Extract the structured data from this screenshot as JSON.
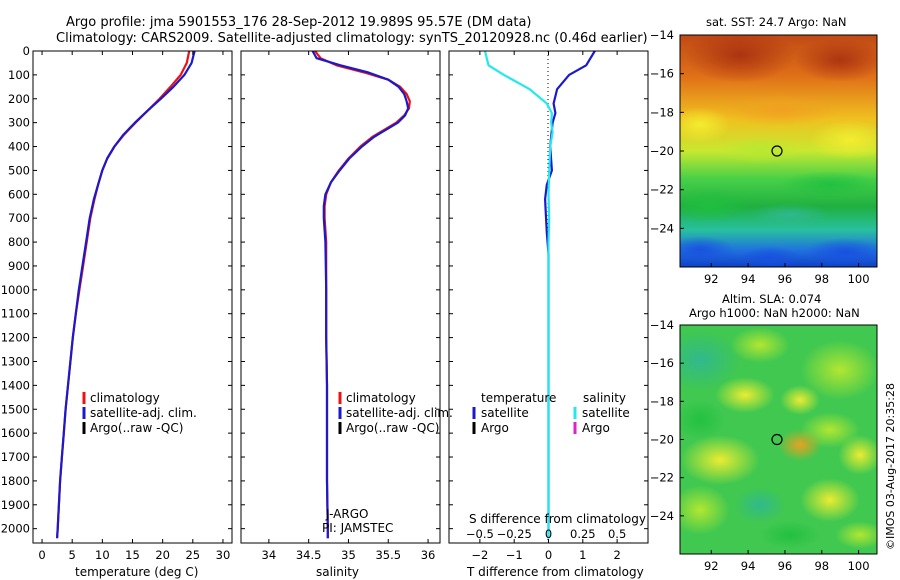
{
  "header": {
    "title_line1": "Argo profile: jma 5901553_176 28-Sep-2012 19.989S 95.57E (DM data)",
    "title_line2": "Climatology: CARS2009. Satellite-adjusted climatology: synTS_20120928.nc (0.46d earlier)"
  },
  "colors": {
    "climatology": "#ee1111",
    "satellite": "#1a1acc",
    "argo": "#000000",
    "salinity_satellite": "#22e8f0",
    "salinity_argo": "#dd22cc"
  },
  "chart_data": [
    {
      "type": "line",
      "title": "",
      "xlabel": "temperature (deg C)",
      "ylabel": "",
      "xlim": [
        -1.5,
        31.5
      ],
      "ylim": [
        2060,
        0
      ],
      "xticks": [
        0,
        5,
        10,
        15,
        20,
        25,
        30
      ],
      "yticks": [
        0,
        100,
        200,
        300,
        400,
        500,
        600,
        700,
        800,
        900,
        1000,
        1100,
        1200,
        1300,
        1400,
        1500,
        1600,
        1700,
        1800,
        1900,
        2000
      ],
      "legend": [
        "climatology",
        "satellite-adj. clim.",
        "Argo(..raw -QC)"
      ],
      "series": [
        {
          "name": "climatology",
          "color": "#ee1111",
          "points": [
            [
              24.4,
              0
            ],
            [
              24.0,
              50
            ],
            [
              23.0,
              100
            ],
            [
              21.3,
              150
            ],
            [
              19.5,
              200
            ],
            [
              17.5,
              250
            ],
            [
              15.5,
              300
            ],
            [
              13.6,
              350
            ],
            [
              12.0,
              400
            ],
            [
              10.8,
              450
            ],
            [
              10.0,
              500
            ],
            [
              9.3,
              560
            ],
            [
              8.7,
              620
            ],
            [
              8.0,
              700
            ],
            [
              7.4,
              800
            ],
            [
              6.8,
              900
            ],
            [
              6.2,
              1000
            ],
            [
              5.6,
              1100
            ],
            [
              5.1,
              1200
            ],
            [
              4.7,
              1300
            ],
            [
              4.3,
              1400
            ],
            [
              3.9,
              1500
            ],
            [
              3.6,
              1600
            ],
            [
              3.3,
              1700
            ],
            [
              3.0,
              1800
            ],
            [
              2.8,
              1900
            ],
            [
              2.6,
              2000
            ],
            [
              2.5,
              2040
            ]
          ]
        },
        {
          "name": "satellite-adj. clim.",
          "color": "#1a1acc",
          "points": [
            [
              25.3,
              0
            ],
            [
              24.8,
              50
            ],
            [
              23.6,
              100
            ],
            [
              21.8,
              150
            ],
            [
              19.7,
              200
            ],
            [
              17.5,
              250
            ],
            [
              15.4,
              300
            ],
            [
              13.5,
              350
            ],
            [
              12.0,
              400
            ],
            [
              10.8,
              450
            ],
            [
              10.0,
              500
            ],
            [
              9.3,
              560
            ],
            [
              8.6,
              620
            ],
            [
              7.9,
              700
            ],
            [
              7.3,
              800
            ],
            [
              6.7,
              900
            ],
            [
              6.1,
              1000
            ],
            [
              5.6,
              1100
            ],
            [
              5.1,
              1200
            ],
            [
              4.7,
              1300
            ],
            [
              4.3,
              1400
            ],
            [
              3.9,
              1500
            ],
            [
              3.6,
              1600
            ],
            [
              3.3,
              1700
            ],
            [
              3.0,
              1800
            ],
            [
              2.8,
              1900
            ],
            [
              2.6,
              2000
            ],
            [
              2.5,
              2040
            ]
          ]
        }
      ]
    },
    {
      "type": "line",
      "title": "",
      "xlabel": "salinity",
      "ylabel": "",
      "xlim": [
        33.65,
        36.15
      ],
      "ylim": [
        2060,
        0
      ],
      "xticks": [
        34,
        34.5,
        35,
        35.5,
        36
      ],
      "yticks": [
        0,
        100,
        200,
        300,
        400,
        500,
        600,
        700,
        800,
        900,
        1000,
        1100,
        1200,
        1300,
        1400,
        1500,
        1600,
        1700,
        1800,
        1900,
        2000
      ],
      "legend": [
        "climatology",
        "satellite-adj. clim.",
        "Argo(..raw -QC)"
      ],
      "annotations": [
        "J-ARGO",
        "PI: JAMSTEC"
      ],
      "series": [
        {
          "name": "climatology",
          "color": "#ee1111",
          "points": [
            [
              34.58,
              0
            ],
            [
              34.65,
              30
            ],
            [
              34.85,
              60
            ],
            [
              35.2,
              90
            ],
            [
              35.5,
              120
            ],
            [
              35.65,
              150
            ],
            [
              35.73,
              180
            ],
            [
              35.77,
              210
            ],
            [
              35.76,
              240
            ],
            [
              35.7,
              270
            ],
            [
              35.6,
              300
            ],
            [
              35.45,
              330
            ],
            [
              35.3,
              360
            ],
            [
              35.15,
              400
            ],
            [
              35.0,
              450
            ],
            [
              34.88,
              500
            ],
            [
              34.78,
              550
            ],
            [
              34.72,
              600
            ],
            [
              34.7,
              650
            ],
            [
              34.7,
              700
            ],
            [
              34.71,
              750
            ],
            [
              34.72,
              800
            ],
            [
              34.72,
              1000
            ],
            [
              34.72,
              1200
            ],
            [
              34.73,
              1400
            ],
            [
              34.73,
              1600
            ],
            [
              34.73,
              1800
            ],
            [
              34.74,
              2000
            ],
            [
              34.74,
              2040
            ]
          ]
        },
        {
          "name": "satellite-adj. clim.",
          "color": "#1a1acc",
          "points": [
            [
              34.55,
              0
            ],
            [
              34.6,
              30
            ],
            [
              34.9,
              60
            ],
            [
              35.25,
              90
            ],
            [
              35.5,
              120
            ],
            [
              35.63,
              150
            ],
            [
              35.7,
              180
            ],
            [
              35.73,
              210
            ],
            [
              35.75,
              240
            ],
            [
              35.71,
              270
            ],
            [
              35.62,
              300
            ],
            [
              35.47,
              330
            ],
            [
              35.32,
              360
            ],
            [
              35.17,
              400
            ],
            [
              35.01,
              450
            ],
            [
              34.89,
              500
            ],
            [
              34.78,
              550
            ],
            [
              34.71,
              600
            ],
            [
              34.69,
              650
            ],
            [
              34.69,
              700
            ],
            [
              34.7,
              750
            ],
            [
              34.71,
              800
            ],
            [
              34.72,
              1000
            ],
            [
              34.72,
              1200
            ],
            [
              34.73,
              1400
            ],
            [
              34.73,
              1600
            ],
            [
              34.73,
              1800
            ],
            [
              34.74,
              2000
            ],
            [
              34.74,
              2040
            ]
          ]
        }
      ]
    },
    {
      "type": "line",
      "title": "",
      "xlabel": "T difference from climatology",
      "xlabel2": "S difference from climatology",
      "ylabel": "",
      "xlim": [
        -2.9,
        2.9
      ],
      "ylim": [
        2060,
        0
      ],
      "xticks": [
        -2,
        -1,
        0,
        1,
        2
      ],
      "xticks2": [
        -0.5,
        -0.25,
        0,
        0.25,
        0.5
      ],
      "xticks2_labels": [
        "−0.5",
        "−0.25",
        "0",
        "0.25",
        "0.5"
      ],
      "xticks_labels": [
        "−2",
        "−1",
        "0",
        "1",
        "2"
      ],
      "yticks": [
        0,
        100,
        200,
        300,
        400,
        500,
        600,
        700,
        800,
        900,
        1000,
        1100,
        1200,
        1300,
        1400,
        1500,
        1600,
        1700,
        1800,
        1900,
        2000
      ],
      "legend_temperature": [
        "temperature",
        "satellite",
        "Argo"
      ],
      "legend_salinity": [
        "salinity",
        "satellite",
        "Argo"
      ],
      "series": [
        {
          "name": "temperature satellite",
          "color": "#1a1acc",
          "points": [
            [
              1.35,
              0
            ],
            [
              1.1,
              60
            ],
            [
              0.6,
              100
            ],
            [
              0.25,
              160
            ],
            [
              0.15,
              220
            ],
            [
              0.2,
              260
            ],
            [
              0.12,
              300
            ],
            [
              0.05,
              400
            ],
            [
              0.1,
              500
            ],
            [
              -0.05,
              560
            ],
            [
              -0.1,
              620
            ],
            [
              -0.08,
              680
            ],
            [
              -0.05,
              760
            ],
            [
              0.0,
              850
            ],
            [
              0.0,
              1000
            ],
            [
              0.0,
              1200
            ],
            [
              0.0,
              1500
            ],
            [
              0.0,
              1800
            ],
            [
              0.0,
              2040
            ]
          ]
        },
        {
          "name": "salinity satellite",
          "color": "#22e8f0",
          "points": [
            [
              -1.85,
              0
            ],
            [
              -1.75,
              60
            ],
            [
              -1.3,
              100
            ],
            [
              -0.55,
              160
            ],
            [
              -0.05,
              220
            ],
            [
              0.1,
              260
            ],
            [
              0.08,
              300
            ],
            [
              0.12,
              340
            ],
            [
              0.05,
              400
            ],
            [
              0.02,
              500
            ],
            [
              0.0,
              600
            ],
            [
              0.02,
              700
            ],
            [
              0.0,
              800
            ],
            [
              0.0,
              1000
            ],
            [
              0.0,
              1200
            ],
            [
              0.0,
              1500
            ],
            [
              0.0,
              1800
            ],
            [
              0.0,
              2040
            ]
          ]
        }
      ]
    },
    {
      "type": "heatmap",
      "title": "sat. SST: 24.7  Argo: NaN",
      "xlim": [
        90.3,
        101
      ],
      "ylim": [
        -26,
        -14
      ],
      "xticks": [
        92,
        94,
        96,
        98,
        100
      ],
      "yticks": [
        -14,
        -16,
        -18,
        -20,
        -22,
        -24
      ],
      "yticks_labels": [
        "−14",
        "−16",
        "−18",
        "−20",
        "−22",
        "−24"
      ],
      "marker": [
        95.57,
        -20.0
      ]
    },
    {
      "type": "heatmap",
      "title_line1": "Altim. SLA: 0.074",
      "title_line2": "Argo h1000: NaN h2000: NaN",
      "xlim": [
        90.3,
        101
      ],
      "ylim": [
        -26,
        -14
      ],
      "xticks": [
        92,
        94,
        96,
        98,
        100
      ],
      "yticks": [
        -14,
        -16,
        -18,
        -20,
        -22,
        -24
      ],
      "yticks_labels": [
        "−14",
        "−16",
        "−18",
        "−20",
        "−22",
        "−24"
      ],
      "marker": [
        95.57,
        -20.0
      ]
    }
  ],
  "credit": "©IMOS 03-Aug-2017 20:35:28"
}
